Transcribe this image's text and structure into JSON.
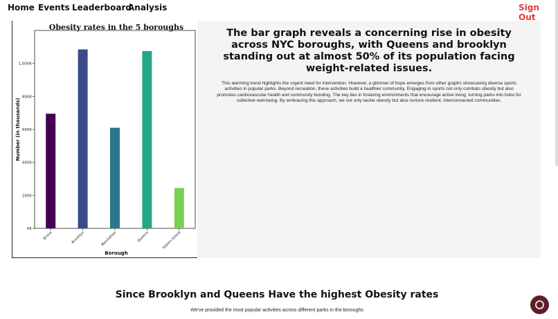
{
  "nav": {
    "home": "Home",
    "events": "Events",
    "leaderboard": "Leaderboard",
    "analysis": "Analysis",
    "sign_out": "Sign Out"
  },
  "chart_data": {
    "type": "bar",
    "title": "Obesity rates in the 5 boroughs",
    "xlabel": "Borough",
    "ylabel": "Number (in thousands)",
    "categories": [
      "Bronx",
      "Brooklyn",
      "Manhattan",
      "Queens",
      "Staten Island"
    ],
    "values": [
      695,
      1085,
      610,
      1075,
      245
    ],
    "ylim": [
      0,
      1200
    ],
    "yticks": [
      0,
      200,
      400,
      600,
      800,
      1000
    ],
    "ytick_labels": [
      "0K",
      "200K",
      "400K",
      "600K",
      "800K",
      "1,000K"
    ],
    "colors": [
      "#440154",
      "#3b4a8a",
      "#2a788e",
      "#22a884",
      "#7ad151"
    ],
    "grid": false
  },
  "panel": {
    "heading": "The bar graph reveals a concerning rise in obesity across NYC boroughs, with Queens and brooklyn standing out at almost 50% of its population facing weight-related issues.",
    "body": "This alarming trend highlights the urgent need for intervention. However, a glimmer of hope emerges from other graphs showcasing diverse sports activities in popular parks. Beyond recreation, these activities build a healthier community. Engaging in sports not only combats obesity but also promotes cardiovascular health and community bonding. The key lies in fostering environments that encourage active living, turning parks into hubs for collective well-being. By embracing this approach, we not only tackle obesity but also nurture resilient, interconnected communities."
  },
  "section": {
    "title": "Since Brooklyn and Queens Have the highest Obesity rates",
    "subtitle": "We've provided the most popular activities across different parks in the boroughs"
  },
  "icons": {
    "chat": "chat-bubble-icon"
  }
}
